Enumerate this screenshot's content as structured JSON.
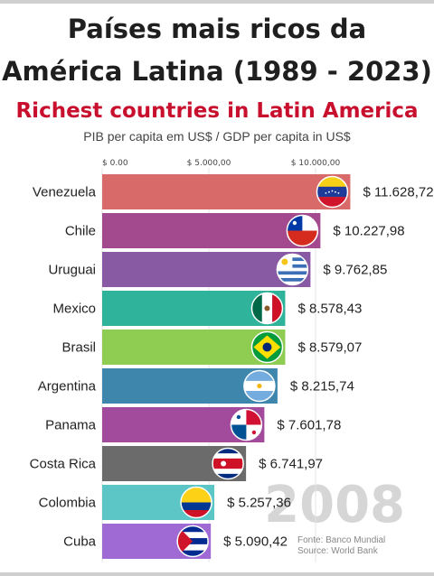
{
  "header": {
    "title_line1": "Países mais ricos da",
    "title_line2": "América Latina (1989 - 2023)",
    "subtitle": "Richest countries in Latin America",
    "axis_caption": "PIB per capita em US$ / GDP per capita in US$"
  },
  "year": "2008",
  "source": {
    "line1": "Fonte: Banco Mundial",
    "line2": "Source: World Bank"
  },
  "chart_data": {
    "type": "bar",
    "orientation": "horizontal",
    "xlim": [
      0,
      12000
    ],
    "ticks": [
      {
        "value": 0,
        "label": "$ 0.00"
      },
      {
        "value": 5000,
        "label": "$ 5.000,00"
      },
      {
        "value": 10000,
        "label": "$ 10.000,00"
      }
    ],
    "categories": [
      "Venezuela",
      "Chile",
      "Uruguai",
      "Mexico",
      "Brasil",
      "Argentina",
      "Panama",
      "Costa Rica",
      "Colombia",
      "Cuba"
    ],
    "values": [
      11628.72,
      10227.98,
      9762.85,
      8578.43,
      8579.07,
      8215.74,
      7601.78,
      6741.97,
      5257.36,
      5090.42
    ],
    "value_labels": [
      "$ 11.628,72",
      "$ 10.227,98",
      "$ 9.762,85",
      "$ 8.578,43",
      "$ 8.579,07",
      "$ 8.215,74",
      "$ 7.601,78",
      "$ 6.741,97",
      "$ 5.257,36",
      "$ 5.090,42"
    ],
    "colors": [
      "#d96a6a",
      "#a34a8e",
      "#875aa3",
      "#2fb39b",
      "#8fcc52",
      "#3f86ad",
      "#a24a9b",
      "#6b6b6b",
      "#5cc6c6",
      "#a06ad4"
    ],
    "flags": [
      "venezuela-flag",
      "chile-flag",
      "uruguay-flag",
      "mexico-flag",
      "brazil-flag",
      "argentina-flag",
      "panama-flag",
      "costa-rica-flag",
      "colombia-flag",
      "cuba-flag"
    ]
  }
}
